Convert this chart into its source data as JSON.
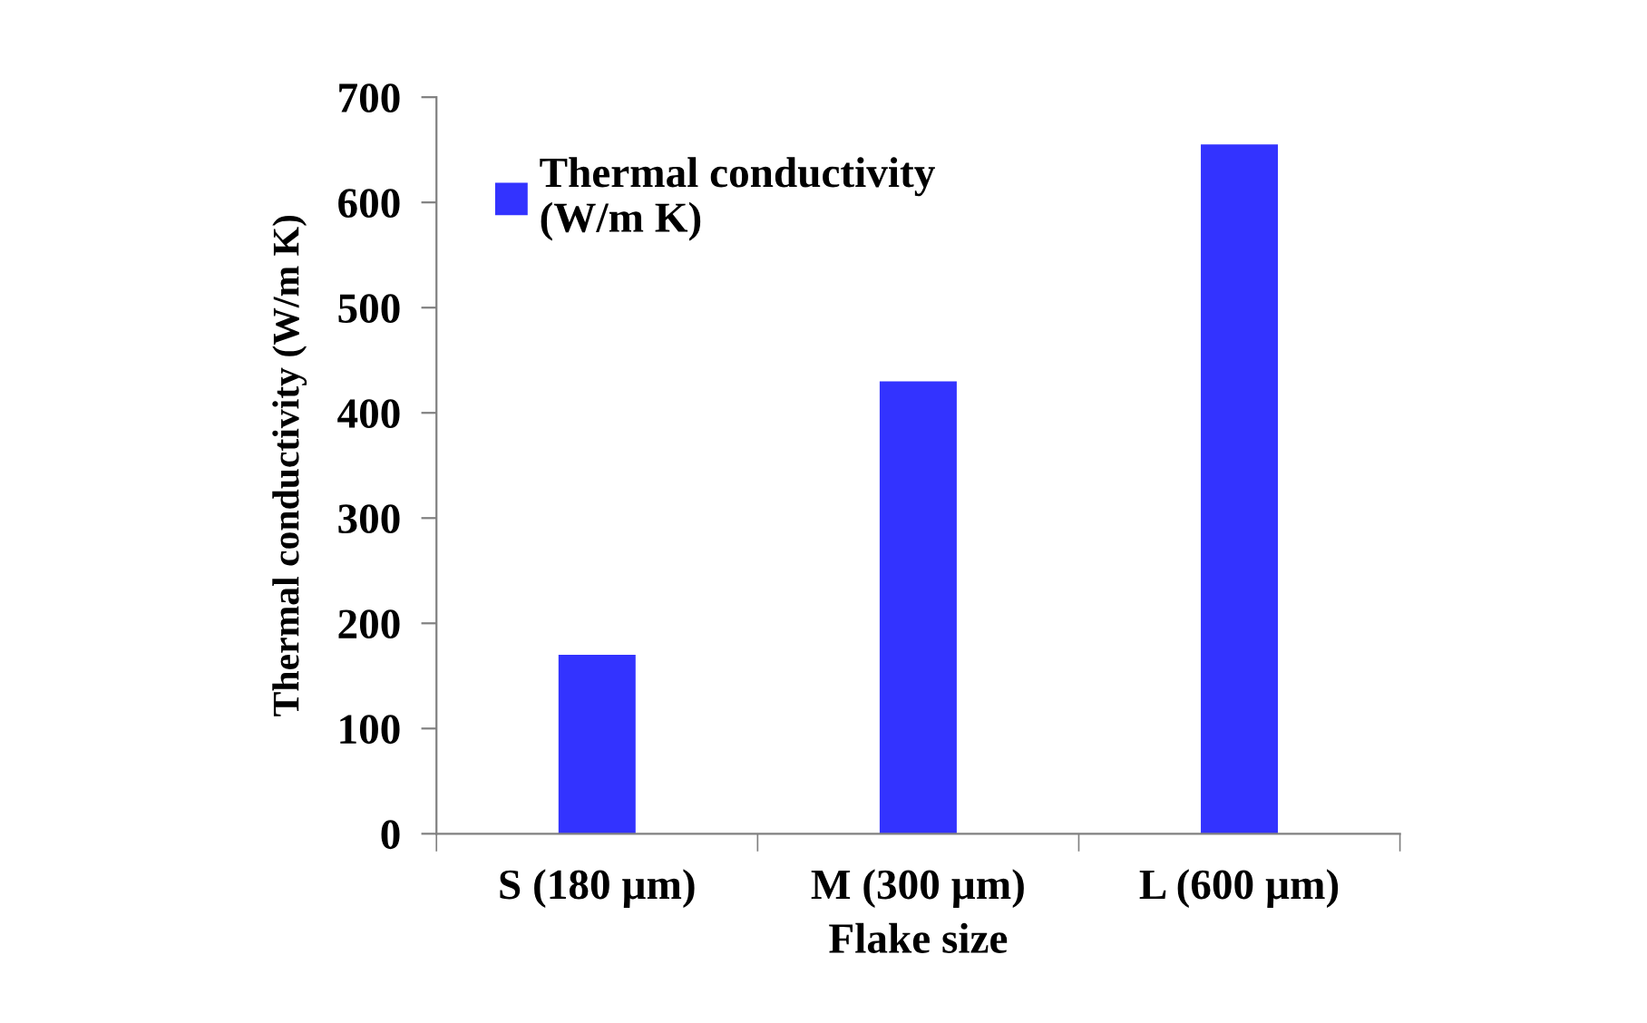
{
  "chart_data": {
    "type": "bar",
    "xlabel": "Flake size",
    "ylabel": "Thermal conductivity (W/m K)",
    "categories": [
      "S (180 µm)",
      "M (300 µm)",
      "L (600 µm)"
    ],
    "series": [
      {
        "name": "Thermal conductivity\n(W/m K)",
        "color": "#3333ff",
        "values": [
          170,
          430,
          655
        ]
      }
    ],
    "ylim": [
      0,
      700
    ],
    "yticks": [
      0,
      100,
      200,
      300,
      400,
      500,
      600,
      700
    ],
    "grid": false,
    "legend": "top left"
  }
}
